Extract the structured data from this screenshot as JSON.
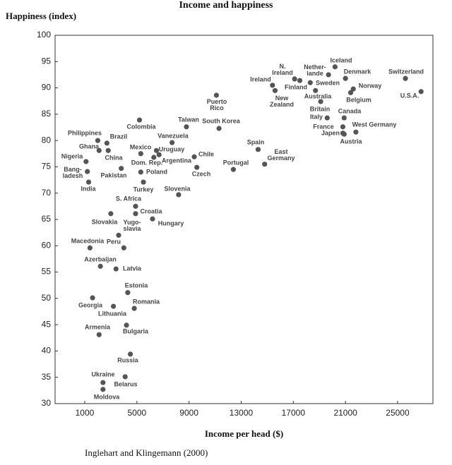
{
  "chart_data": {
    "type": "scatter",
    "title": "Income and happiness",
    "y_label": "Happiness (index)",
    "x_label": "Income per head ($)",
    "source": "Inglehart and Klingemann (2000)",
    "labels": [
      "Iceland",
      "N.\nIreland",
      "Ireland",
      "Nether-\nlande",
      "Denmark",
      "Switzerland",
      "Finland",
      "Sweden",
      "Norway",
      "U.S.A.",
      "New\nZealand",
      "Australia",
      "Belgium",
      "Puerto\nRico",
      "Britain",
      "Canada",
      "Italy",
      "France",
      "West Germany",
      "Japen",
      "Austria",
      "Colombia",
      "Taiwan",
      "South Korea",
      "Vanezuela",
      "Philippines",
      "Brazil",
      "Ghana",
      "China",
      "Mexico",
      "Uruguay",
      "Argentina",
      "Dom. Rep.",
      "Chile",
      "Nigeria",
      "Spain",
      "East\nGermany",
      "Portugal",
      "Czech",
      "Bang-\nladesh",
      "Pakistan",
      "Poland",
      "India",
      "Turkey",
      "Slovenia",
      "S. Africa",
      "Croatia",
      "Slovakia",
      "Hungary",
      "Yugo-\nslavia",
      "Macedonia",
      "Peru",
      "Azerbaijan",
      "Latvia",
      "Estonia",
      "Georgia",
      "Lithuania",
      "Romania",
      "Armenia",
      "Bulgaria",
      "Russia",
      "Ukraine",
      "Belarus",
      "Moldova"
    ],
    "x": [
      20200,
      17100,
      15400,
      19700,
      21000,
      25600,
      17500,
      18300,
      21600,
      26800,
      15600,
      18700,
      21400,
      11100,
      19100,
      20900,
      19600,
      20800,
      21800,
      20800,
      20900,
      5200,
      8800,
      11300,
      7700,
      2000,
      2700,
      2100,
      2800,
      5300,
      6500,
      6700,
      6300,
      9400,
      1100,
      14300,
      14800,
      12400,
      9600,
      1200,
      3800,
      5300,
      1300,
      5500,
      8200,
      4900,
      4900,
      3000,
      6200,
      3600,
      1400,
      4000,
      2200,
      3400,
      4300,
      1600,
      3200,
      4800,
      4200,
      2100,
      4500,
      2400,
      4100,
      2400
    ],
    "series": [
      {
        "name": "Countries",
        "color": "#555555",
        "values": [
          94.0,
          91.7,
          90.5,
          92.5,
          91.8,
          91.8,
          91.4,
          91.0,
          89.8,
          89.3,
          89.5,
          89.5,
          89.1,
          88.6,
          87.4,
          84.3,
          84.3,
          82.6,
          81.6,
          81.4,
          81.2,
          83.9,
          82.6,
          82.3,
          79.6,
          80.0,
          79.5,
          78.1,
          78.1,
          77.5,
          78.1,
          77.3,
          76.8,
          76.9,
          76.0,
          78.3,
          75.5,
          74.5,
          74.9,
          74.1,
          74.7,
          74.0,
          72.1,
          72.1,
          69.7,
          67.5,
          66.1,
          66.1,
          65.1,
          62.0,
          59.6,
          59.6,
          56.1,
          55.6,
          51.1,
          50.1,
          48.5,
          48.1,
          44.9,
          43.1,
          39.4,
          34.0,
          35.1,
          32.7
        ]
      }
    ],
    "xlim": [
      -1275,
      27710
    ],
    "ylim": [
      30,
      100
    ],
    "xticks": [
      1000,
      5000,
      9000,
      13000,
      17000,
      21000,
      25000
    ],
    "yticks": [
      30,
      35,
      40,
      45,
      50,
      55,
      60,
      65,
      70,
      75,
      80,
      85,
      90,
      95,
      100
    ]
  }
}
